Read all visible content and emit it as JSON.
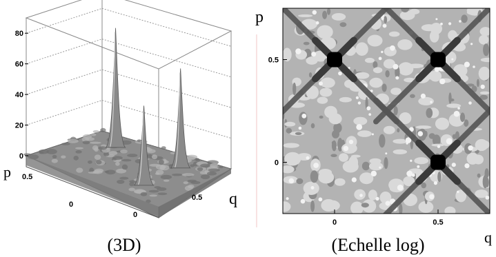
{
  "chart_data": [
    {
      "type": "surface3d",
      "caption": "(3D)",
      "xlabel": "q",
      "ylabel": "p",
      "z_ticks": [
        "0",
        "20",
        "40",
        "60",
        "80"
      ],
      "x_ticks": [
        "0",
        "0.5"
      ],
      "y_ticks": [
        "0",
        "0.5"
      ],
      "zlim": [
        0,
        90
      ],
      "grid": true,
      "peaks": [
        {
          "q": 0,
          "p": 0.5,
          "height": 78
        },
        {
          "q": 0.5,
          "p": 0.5,
          "height": 65
        },
        {
          "q": 0.5,
          "p": 0,
          "height": 52
        }
      ]
    },
    {
      "type": "contour",
      "caption": "(Echelle log)",
      "xlabel": "q",
      "ylabel": "p",
      "x_ticks": [
        "0",
        "0.5"
      ],
      "y_ticks": [
        "0",
        "0.5"
      ],
      "xlim": [
        -0.25,
        0.75
      ],
      "ylim": [
        -0.25,
        0.75
      ],
      "peaks": [
        {
          "q": 0,
          "p": 0.5
        },
        {
          "q": 0.5,
          "p": 0.5
        },
        {
          "q": 0.5,
          "p": 0
        }
      ],
      "levels": [
        "#d9d9d9",
        "#b3b3b3",
        "#8c8c8c",
        "#555555",
        "#000000"
      ]
    }
  ]
}
